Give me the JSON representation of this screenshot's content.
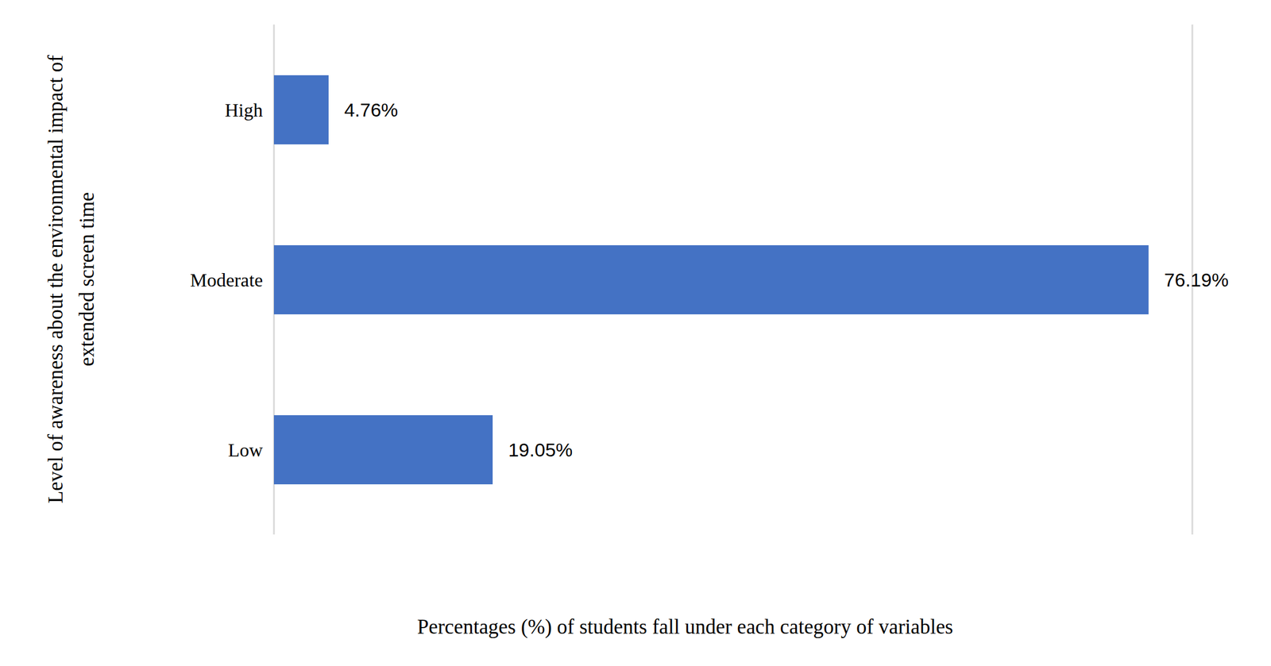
{
  "chart_data": {
    "type": "bar",
    "orientation": "horizontal",
    "y_label": "Level of awareness about the environmental impact of extended screen time",
    "x_label": "Percentages (%) of students fall under each category of variables",
    "categories": [
      "High",
      "Moderate",
      "Low"
    ],
    "values": [
      4.76,
      76.19,
      19.05
    ],
    "value_labels": [
      "4.76%",
      "76.19%",
      "19.05%"
    ],
    "data_labels": true,
    "color": "#4472c4",
    "xlim": [
      0,
      80
    ],
    "xticks": [
      0,
      10,
      20,
      30,
      40,
      50,
      60,
      70,
      80
    ],
    "grid": true,
    "tick_labels": "y"
  }
}
